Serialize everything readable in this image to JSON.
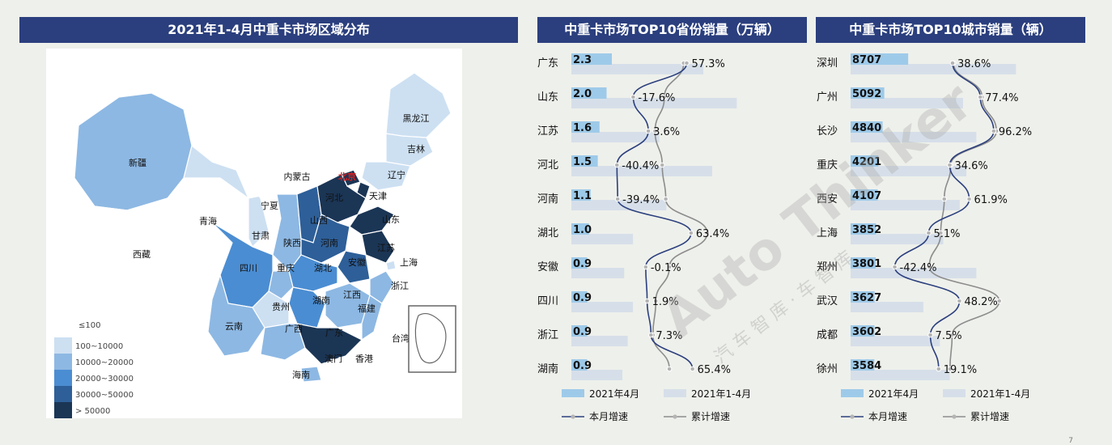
{
  "map": {
    "title": "2021年1-4月中重卡市场区域分布",
    "regions": [
      {
        "name": "新疆",
        "tier": 3
      },
      {
        "name": "西藏",
        "tier": 1
      },
      {
        "name": "青海",
        "tier": 1
      },
      {
        "name": "甘肃",
        "tier": 2
      },
      {
        "name": "内蒙古",
        "tier": 1
      },
      {
        "name": "宁夏",
        "tier": 1
      },
      {
        "name": "陕西",
        "tier": 3
      },
      {
        "name": "山西",
        "tier": 5
      },
      {
        "name": "河北",
        "tier": 6
      },
      {
        "name": "北京",
        "tier": 6,
        "highlight": true
      },
      {
        "name": "天津",
        "tier": 6
      },
      {
        "name": "山东",
        "tier": 6
      },
      {
        "name": "河南",
        "tier": 5
      },
      {
        "name": "江苏",
        "tier": 6
      },
      {
        "name": "上海",
        "tier": 2
      },
      {
        "name": "安徽",
        "tier": 5
      },
      {
        "name": "湖北",
        "tier": 4
      },
      {
        "name": "重庆",
        "tier": 3
      },
      {
        "name": "四川",
        "tier": 4
      },
      {
        "name": "浙江",
        "tier": 3
      },
      {
        "name": "湖南",
        "tier": 4
      },
      {
        "name": "江西",
        "tier": 3
      },
      {
        "name": "福建",
        "tier": 3
      },
      {
        "name": "贵州",
        "tier": 2
      },
      {
        "name": "云南",
        "tier": 3
      },
      {
        "name": "广西",
        "tier": 3
      },
      {
        "name": "广东",
        "tier": 6
      },
      {
        "name": "海南",
        "tier": 3
      },
      {
        "name": "澳门",
        "tier": 1
      },
      {
        "name": "香港",
        "tier": 1
      },
      {
        "name": "台湾",
        "tier": 1
      },
      {
        "name": "辽宁",
        "tier": 2
      },
      {
        "name": "吉林",
        "tier": 2
      },
      {
        "name": "黑龙江",
        "tier": 2
      }
    ],
    "legend": [
      {
        "label": "≤100",
        "color": "#ffffff"
      },
      {
        "label": "100~10000",
        "color": "#cde0f2"
      },
      {
        "label": "10000~20000",
        "color": "#8db8e3"
      },
      {
        "label": "20000~30000",
        "color": "#4b8dd2"
      },
      {
        "label": "30000~50000",
        "color": "#2e5f98"
      },
      {
        "label": "> 50000",
        "color": "#1b3555"
      }
    ]
  },
  "chart_data": [
    {
      "type": "bar",
      "title": "中重卡市场TOP10省份销量（万辆）",
      "categories": [
        "广东",
        "山东",
        "江苏",
        "河北",
        "河南",
        "湖北",
        "安徽",
        "四川",
        "浙江",
        "湖南"
      ],
      "series": [
        {
          "name": "2021年4月",
          "values": [
            2.3,
            2.0,
            1.6,
            1.5,
            1.1,
            1.0,
            0.9,
            0.9,
            0.9,
            0.9
          ],
          "color": "#9ecae9"
        },
        {
          "name": "2021年1-4月",
          "values": [
            7.5,
            9.4,
            5.0,
            8.0,
            5.4,
            3.5,
            3.0,
            3.5,
            3.2,
            2.9
          ],
          "color": "#d6dfe9"
        },
        {
          "name": "本月增速",
          "values": [
            57.3,
            -17.6,
            3.6,
            -40.4,
            -39.4,
            63.4,
            -0.1,
            1.9,
            7.3,
            65.4
          ],
          "color": "#2b3f7e"
        },
        {
          "name": "累计增速",
          "values": [
            53,
            26,
            13,
            23,
            28,
            86,
            33,
            14,
            10,
            33
          ],
          "color": "#8c8c8c"
        }
      ],
      "labels": [
        "57.3%",
        "-17.6%",
        "3.6%",
        "-40.4%",
        "-39.4%",
        "63.4%",
        "-0.1%",
        "1.9%",
        "7.3%",
        "65.4%"
      ],
      "bar_labels": [
        "2.3",
        "2.0",
        "1.6",
        "1.5",
        "1.1",
        "1.0",
        "0.9",
        "0.9",
        "0.9",
        "0.9"
      ],
      "legend": {
        "bar1": "2021年4月",
        "bar2": "2021年1-4月",
        "line1": "本月增速",
        "line2": "累计增速"
      }
    },
    {
      "type": "bar",
      "title": "中重卡市场TOP10城市销量（辆）",
      "categories": [
        "深圳",
        "广州",
        "长沙",
        "重庆",
        "西安",
        "上海",
        "郑州",
        "武汉",
        "成都",
        "徐州"
      ],
      "series": [
        {
          "name": "2021年4月",
          "values": [
            8707,
            5092,
            4840,
            4201,
            4107,
            3852,
            3801,
            3627,
            3602,
            3584
          ],
          "color": "#9ecae9"
        },
        {
          "name": "2021年1-4月",
          "values": [
            25000,
            17000,
            19000,
            17500,
            16500,
            14000,
            19000,
            11000,
            13500,
            15000
          ],
          "color": "#d6dfe9"
        },
        {
          "name": "本月增速",
          "values": [
            38.6,
            77.4,
            96.2,
            34.6,
            61.9,
            5.1,
            -42.4,
            48.2,
            7.5,
            19.1
          ],
          "color": "#2b3f7e"
        },
        {
          "name": "累计增速",
          "values": [
            40,
            80,
            100,
            36,
            27,
            22,
            6,
            104,
            38,
            35
          ],
          "color": "#8c8c8c"
        }
      ],
      "labels": [
        "38.6%",
        "77.4%",
        "96.2%",
        "34.6%",
        "61.9%",
        "5.1%",
        "-42.4%",
        "48.2%",
        "7.5%",
        "19.1%"
      ],
      "bar_labels": [
        "8707",
        "5092",
        "4840",
        "4201",
        "4107",
        "3852",
        "3801",
        "3627",
        "3602",
        "3584"
      ],
      "legend": {
        "bar1": "2021年4月",
        "bar2": "2021年1-4月",
        "line1": "本月增速",
        "line2": "累计增速"
      }
    }
  ],
  "watermark": {
    "brand": "Auto Thinker",
    "cn": "汽 车 智 库 · 车 智 库"
  },
  "page_number": "7"
}
